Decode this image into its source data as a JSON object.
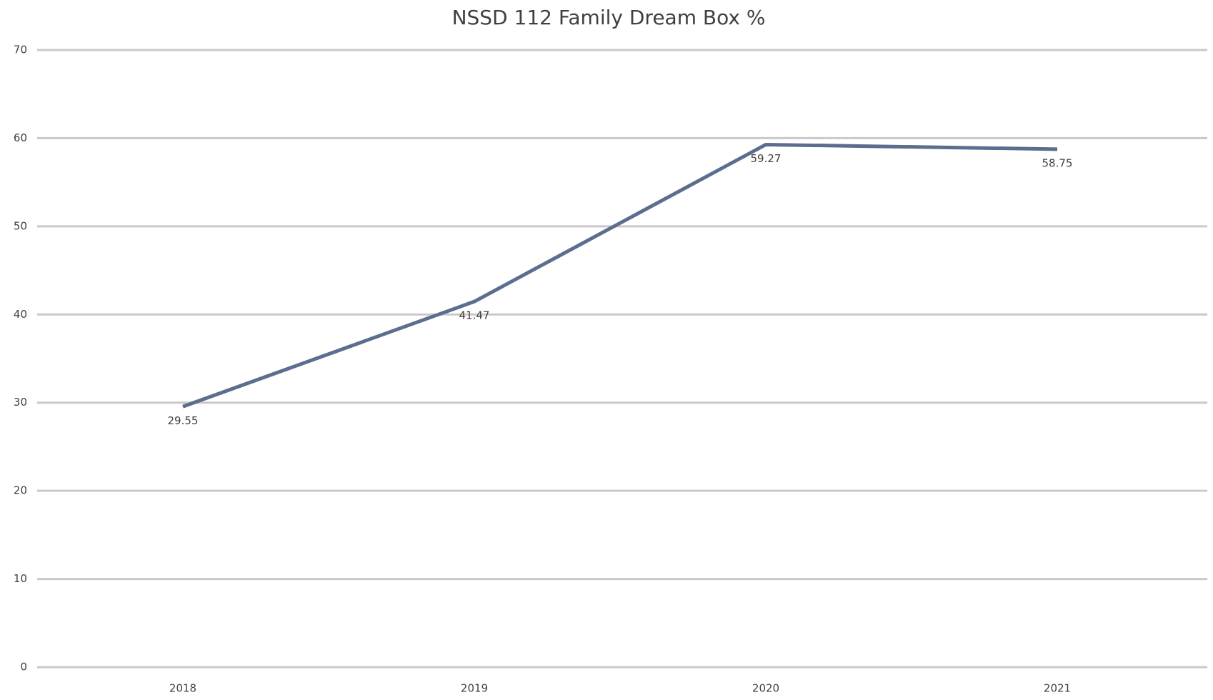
{
  "chart_data": {
    "type": "line",
    "title": "NSSD 112 Family Dream Box %",
    "categories": [
      "2018",
      "2019",
      "2020",
      "2021"
    ],
    "series": [
      {
        "name": "Family Dream Box %",
        "color": "#5b6e8f",
        "values": [
          29.55,
          41.47,
          59.27,
          58.75
        ]
      }
    ],
    "ylim": [
      0,
      70
    ],
    "yticks": [
      0,
      10,
      20,
      30,
      40,
      50,
      60,
      70
    ],
    "grid": true
  }
}
